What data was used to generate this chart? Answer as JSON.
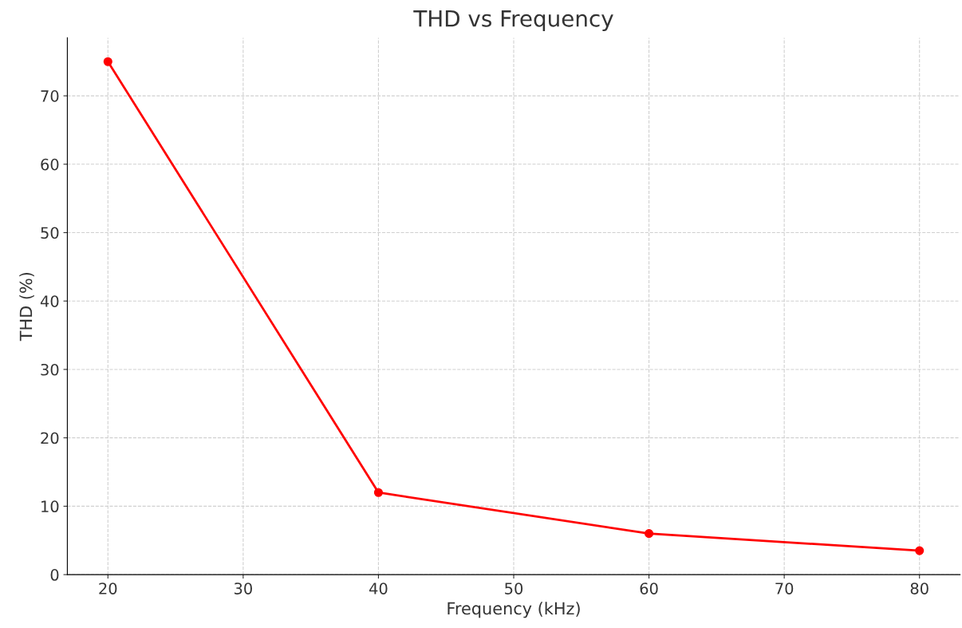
{
  "chart_data": {
    "type": "line",
    "title": "THD vs Frequency",
    "xlabel": "Frequency (kHz)",
    "ylabel": "THD (%)",
    "x": [
      20,
      40,
      60,
      80
    ],
    "series": [
      {
        "color": "#ff0000",
        "values": [
          75,
          12,
          6,
          3.5
        ]
      }
    ],
    "xlim": [
      17,
      83
    ],
    "xticks": [
      20,
      30,
      40,
      50,
      60,
      70,
      80
    ],
    "ylim": [
      0,
      78.5
    ],
    "yticks": [
      0,
      10,
      20,
      30,
      40,
      50,
      60,
      70
    ],
    "grid": true,
    "marker": "circle",
    "line_style": "solid"
  }
}
